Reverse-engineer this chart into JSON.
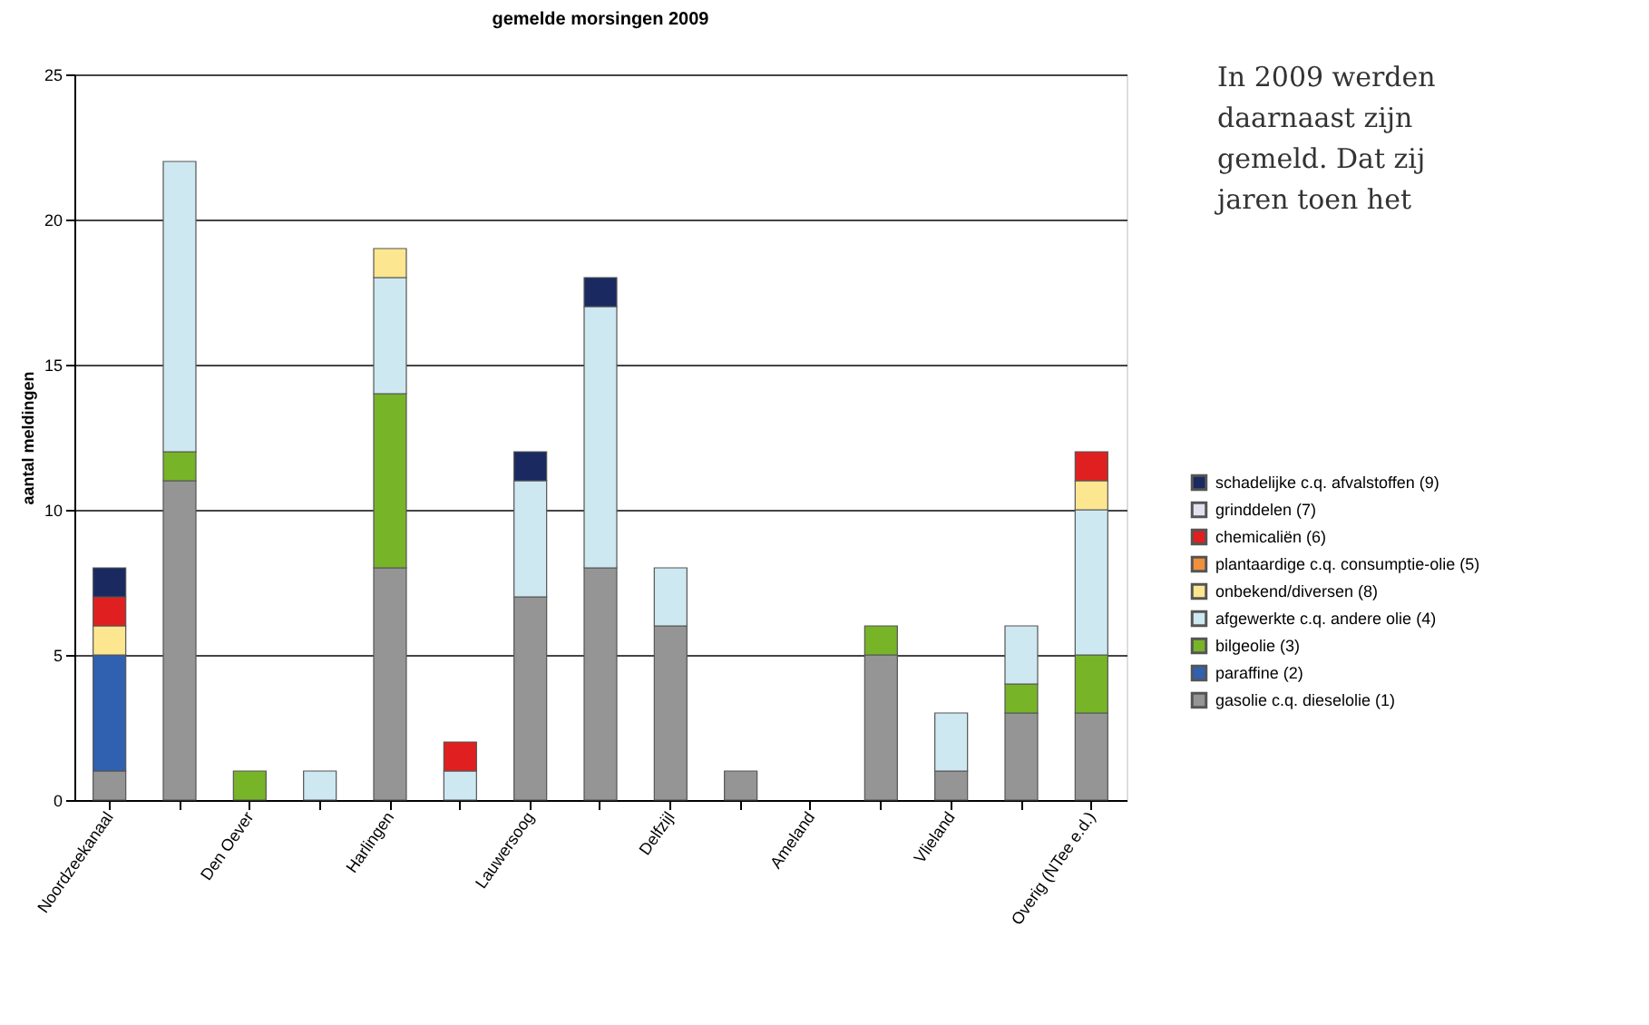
{
  "chart_data": {
    "type": "bar",
    "stacked": true,
    "title": "gemelde morsingen 2009",
    "ylabel": "aantal meldingen",
    "categories": [
      "Noordzeekanaal",
      null,
      "Den Oever",
      null,
      "Harlingen",
      null,
      "Lauwersoog",
      null,
      "Delfzijl",
      null,
      "Ameland",
      null,
      "Vlieland",
      null,
      "Overig (NTee e.d.)"
    ],
    "series": [
      {
        "name": "gasolie c.q. dieselolie (1)",
        "color": "#959595",
        "values": [
          1,
          11,
          null,
          null,
          8,
          null,
          7,
          8,
          6,
          1,
          null,
          5,
          1,
          3,
          3
        ]
      },
      {
        "name": "paraffine (2)",
        "color": "#3060b0",
        "values": [
          4,
          null,
          null,
          null,
          null,
          null,
          null,
          null,
          null,
          null,
          null,
          null,
          null,
          null,
          null
        ]
      },
      {
        "name": "bilgeolie (3)",
        "color": "#78b428",
        "values": [
          null,
          1,
          1,
          null,
          6,
          null,
          null,
          null,
          null,
          null,
          null,
          1,
          null,
          1,
          2
        ]
      },
      {
        "name": "afgewerkte c.q. andere olie (4)",
        "color": "#cde8f0",
        "values": [
          null,
          10,
          null,
          1,
          4,
          1,
          4,
          9,
          2,
          null,
          null,
          null,
          2,
          2,
          5
        ]
      },
      {
        "name": "onbekend/diversen (8)",
        "color": "#fce690",
        "values": [
          1,
          null,
          null,
          null,
          1,
          null,
          null,
          null,
          null,
          null,
          null,
          null,
          null,
          null,
          1
        ]
      },
      {
        "name": "plantaardige c.q. consumptie-olie (5)",
        "color": "#f0903c",
        "values": [
          null,
          null,
          null,
          null,
          null,
          null,
          null,
          null,
          null,
          null,
          null,
          null,
          null,
          null,
          null
        ]
      },
      {
        "name": "chemicaliën (6)",
        "color": "#e02020",
        "values": [
          1,
          null,
          null,
          null,
          null,
          1,
          null,
          null,
          null,
          null,
          null,
          null,
          null,
          null,
          1
        ]
      },
      {
        "name": "grinddelen (7)",
        "color": "#e4e0ee",
        "values": [
          null,
          null,
          null,
          null,
          null,
          null,
          null,
          null,
          null,
          null,
          null,
          null,
          null,
          null,
          null
        ]
      },
      {
        "name": "schadelijke c.q. afvalstoffen (9)",
        "color": "#1a2a60",
        "values": [
          1,
          null,
          null,
          null,
          null,
          null,
          1,
          1,
          null,
          null,
          null,
          null,
          null,
          null,
          null
        ]
      }
    ],
    "ylim": [
      0,
      25
    ],
    "yticks": [
      0,
      5,
      10,
      15,
      20,
      25
    ],
    "grid": "y",
    "legend": "right",
    "annotations": [
      "In 2009 werden",
      "daarnaast zijn",
      "gemeld. Dat zij",
      "jaren toen het"
    ]
  }
}
